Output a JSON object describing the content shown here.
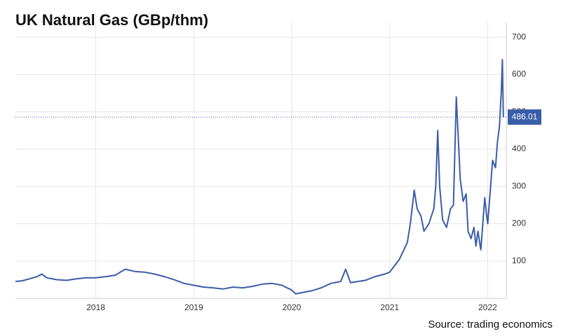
{
  "chart_data": {
    "type": "line",
    "title": "UK Natural Gas (GBp/thm)",
    "source": "Source: trading economics",
    "color": "#3a5da8",
    "last_value": 486.01,
    "grid": true,
    "xlim": [
      2017.18,
      2022.19
    ],
    "xticks": [
      2018,
      2019,
      2020,
      2021,
      2022
    ],
    "ylim": [
      0,
      740
    ],
    "yticks": [
      100,
      200,
      300,
      400,
      500,
      600,
      700
    ],
    "x": [
      2017.18,
      2017.25,
      2017.32,
      2017.4,
      2017.45,
      2017.5,
      2017.6,
      2017.7,
      2017.8,
      2017.9,
      2018.0,
      2018.1,
      2018.2,
      2018.25,
      2018.3,
      2018.4,
      2018.5,
      2018.6,
      2018.7,
      2018.8,
      2018.9,
      2019.0,
      2019.1,
      2019.2,
      2019.3,
      2019.4,
      2019.5,
      2019.6,
      2019.7,
      2019.8,
      2019.9,
      2020.0,
      2020.04,
      2020.1,
      2020.2,
      2020.3,
      2020.4,
      2020.5,
      2020.55,
      2020.6,
      2020.75,
      2020.85,
      2020.95,
      2021.0,
      2021.1,
      2021.18,
      2021.21,
      2021.25,
      2021.28,
      2021.32,
      2021.35,
      2021.4,
      2021.45,
      2021.47,
      2021.49,
      2021.51,
      2021.54,
      2021.58,
      2021.62,
      2021.65,
      2021.68,
      2021.72,
      2021.75,
      2021.78,
      2021.8,
      2021.83,
      2021.86,
      2021.88,
      2021.9,
      2021.93,
      2021.95,
      2021.97,
      2021.99,
      2022.0,
      2022.03,
      2022.05,
      2022.08,
      2022.1,
      2022.12,
      2022.14,
      2022.15,
      2022.16
    ],
    "values": [
      45,
      47,
      52,
      58,
      65,
      55,
      50,
      48,
      52,
      55,
      55,
      58,
      62,
      70,
      78,
      72,
      70,
      65,
      58,
      50,
      40,
      35,
      30,
      28,
      25,
      30,
      28,
      32,
      38,
      40,
      35,
      22,
      12,
      15,
      20,
      28,
      40,
      45,
      78,
      42,
      48,
      58,
      65,
      70,
      105,
      150,
      200,
      290,
      240,
      220,
      180,
      200,
      240,
      300,
      450,
      300,
      210,
      190,
      240,
      250,
      540,
      320,
      260,
      280,
      180,
      160,
      190,
      140,
      180,
      130,
      200,
      270,
      220,
      200,
      300,
      370,
      350,
      420,
      460,
      560,
      640,
      486.01
    ]
  }
}
